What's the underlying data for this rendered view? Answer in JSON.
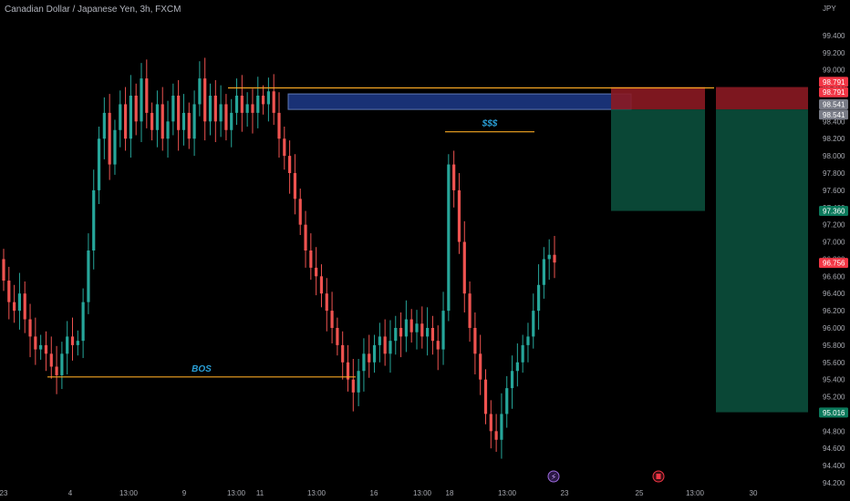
{
  "header": {
    "symbol_title": "Canadian Dollar / Japanese Yen, 3h, FXCM",
    "currency": "JPY"
  },
  "colors": {
    "bull": "#26a69a",
    "bear": "#ef5350",
    "orange": "#f5a623",
    "zone_blue": "#1e3a8a",
    "stop_red": "#8b1a22",
    "target_green": "#0b4f3c",
    "tag_red": "#f23645",
    "tag_gray": "#787b86",
    "tag_green": "#089981",
    "tag_dark_green": "#0c7a5c"
  },
  "chart_data": {
    "type": "candlestick",
    "title": "Canadian Dollar / Japanese Yen, 3h, FXCM",
    "ylim": [
      94.2,
      99.6
    ],
    "y_ticks": [
      "99.400",
      "99.200",
      "99.000",
      "98.800",
      "98.600",
      "98.400",
      "98.200",
      "98.000",
      "97.800",
      "97.600",
      "97.400",
      "97.200",
      "97.000",
      "96.800",
      "96.600",
      "96.400",
      "96.200",
      "96.000",
      "95.800",
      "95.600",
      "95.400",
      "95.200",
      "95.000",
      "94.800",
      "94.600",
      "94.400",
      "94.200"
    ],
    "x_ticks": [
      "23",
      "4",
      "13:00",
      "9",
      "13:00",
      "11",
      "13:00",
      "16",
      "13:00",
      "18",
      "13:00",
      "23",
      "25",
      "13:00",
      "30"
    ],
    "segments": [
      {
        "from": 96.8,
        "pts": [
          96.55,
          96.3,
          96.2,
          96.4,
          96.1,
          95.9,
          95.75,
          95.8,
          95.7,
          95.55,
          95.45,
          95.7,
          95.9,
          95.8,
          95.85
        ]
      },
      {
        "from": 95.85,
        "pts": [
          96.3,
          96.9,
          97.6,
          98.2,
          98.5,
          97.9,
          98.3,
          98.6,
          98.2,
          98.7,
          98.4,
          98.9,
          98.5,
          98.3,
          98.6,
          98.2,
          98.4,
          98.7,
          98.3,
          98.5,
          98.2,
          98.6,
          98.9,
          98.4,
          98.7,
          98.4,
          98.6,
          98.3,
          98.5,
          98.7,
          98.5,
          98.6,
          98.5,
          98.7,
          98.6,
          98.75
        ]
      },
      {
        "from": 98.75,
        "pts": [
          98.5,
          98.2,
          98.0,
          97.8,
          97.5,
          97.2,
          96.9,
          96.7,
          96.6,
          96.4,
          96.2,
          96.0,
          95.8,
          95.6,
          95.4,
          95.25
        ]
      },
      {
        "from": 95.25,
        "pts": [
          95.5,
          95.7,
          95.6,
          95.8,
          95.9,
          95.7,
          95.85,
          96.0,
          95.9,
          96.1,
          95.95,
          96.05,
          95.9,
          96.0,
          95.85,
          95.75,
          96.2,
          97.9,
          97.6,
          97.0,
          96.4,
          96.0,
          95.7
        ]
      },
      {
        "from": 95.7,
        "pts": [
          95.4,
          95.0,
          94.8,
          94.7,
          95.0,
          95.3,
          95.5,
          95.6,
          95.8,
          95.9,
          96.2,
          96.5,
          96.8,
          96.85,
          96.76
        ]
      }
    ],
    "levels": [
      {
        "name": "bos-line",
        "price": 95.43,
        "label": "BOS"
      },
      {
        "name": "liquidity-line",
        "price": 98.28,
        "label": "$$$"
      },
      {
        "name": "high-line",
        "price": 98.79,
        "label": ""
      }
    ],
    "zones": [
      {
        "name": "supply-zone",
        "top": 98.72,
        "bottom": 98.54
      },
      {
        "name": "stop-zone-1",
        "top": 98.8,
        "bottom": 98.54
      },
      {
        "name": "target-zone-1",
        "top": 98.54,
        "bottom": 97.36
      },
      {
        "name": "stop-zone-2",
        "top": 98.8,
        "bottom": 98.54
      },
      {
        "name": "target-zone-2",
        "top": 98.54,
        "bottom": 95.02
      }
    ],
    "price_tags": [
      {
        "label": "98.791",
        "price": 98.86,
        "color": "tag_red"
      },
      {
        "label": "98.791",
        "price": 98.74,
        "color": "tag_red"
      },
      {
        "label": "98.541",
        "price": 98.6,
        "color": "tag_gray"
      },
      {
        "label": "98.541",
        "price": 98.48,
        "color": "tag_gray"
      },
      {
        "label": "97.360",
        "price": 97.36,
        "color": "tag_dark_green"
      },
      {
        "label": "96.756",
        "price": 96.756,
        "color": "tag_red"
      },
      {
        "label": "95.016",
        "price": 95.016,
        "color": "tag_dark_green"
      }
    ]
  }
}
